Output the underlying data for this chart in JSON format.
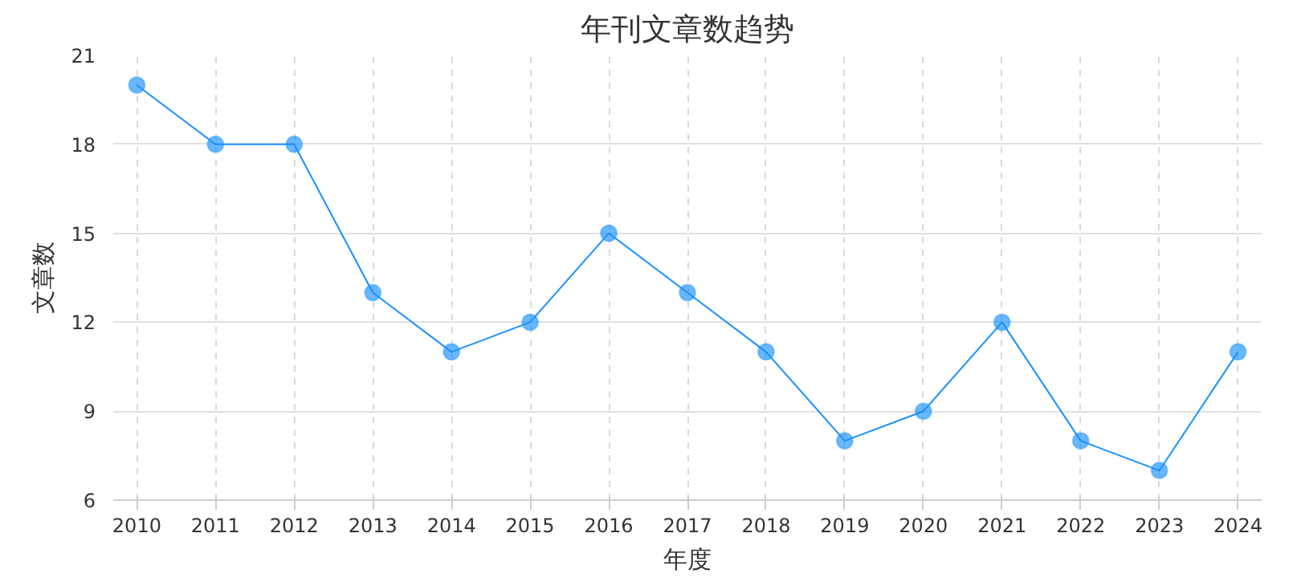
{
  "chart_data": {
    "type": "line",
    "title": "年刊文章数趋势",
    "xlabel": "年度",
    "ylabel": "文章数",
    "categories": [
      "2010",
      "2011",
      "2012",
      "2013",
      "2014",
      "2015",
      "2016",
      "2017",
      "2018",
      "2019",
      "2020",
      "2021",
      "2022",
      "2023",
      "2024"
    ],
    "series": [
      {
        "color": "#1890ff",
        "values": [
          20,
          18,
          18,
          13,
          11,
          12,
          15,
          13,
          11,
          8,
          9,
          12,
          8,
          7,
          11
        ]
      }
    ],
    "ylim": [
      6,
      21
    ],
    "yticks": [
      6,
      9,
      12,
      15,
      18,
      21
    ],
    "grid": true,
    "marker": "circle",
    "line_style": "solid"
  }
}
